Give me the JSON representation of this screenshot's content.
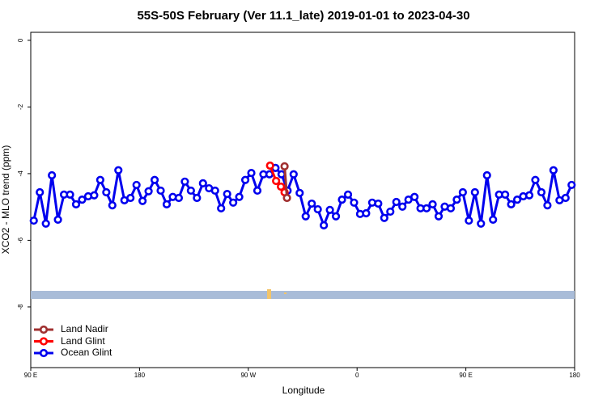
{
  "chart_data": {
    "type": "line",
    "title": "55S-50S February (Ver 11.1_late)   2019-01-01 to 2023-04-30",
    "xlabel": "Longitude",
    "ylabel": "XCO2 - MLO trend (ppm)",
    "xlim": [
      90,
      540
    ],
    "ylim": [
      -9.82,
      0.24
    ],
    "xticks": [
      {
        "value": 90,
        "label": "90 E"
      },
      {
        "value": 180,
        "label": "180"
      },
      {
        "value": 270,
        "label": "90 W"
      },
      {
        "value": 360,
        "label": "0"
      },
      {
        "value": 450,
        "label": "90 E"
      },
      {
        "value": 540,
        "label": "180"
      }
    ],
    "yticks": [
      0,
      -2,
      -4,
      -6,
      -8
    ],
    "legend": "bottom-left",
    "series": [
      {
        "name": "Land Nadir",
        "color": "#a03030",
        "x": [
          300,
          302
        ],
        "values": [
          -3.78,
          -4.73
        ]
      },
      {
        "name": "Land Glint",
        "color": "#ff0000",
        "x": [
          288,
          293,
          297,
          300
        ],
        "values": [
          -3.76,
          -4.22,
          -4.39,
          -4.56
        ]
      },
      {
        "name": "Ocean Glint",
        "color": "#0000ee",
        "x": [
          92.5,
          97.5,
          102.5,
          107.5,
          112.5,
          117.5,
          122.5,
          127.5,
          132.5,
          137.5,
          142.5,
          147.5,
          152.5,
          157.5,
          162.5,
          167.5,
          172.5,
          177.5,
          182.5,
          187.5,
          192.5,
          197.5,
          202.5,
          207.5,
          212.5,
          217.5,
          222.5,
          227.5,
          232.5,
          237.5,
          242.5,
          247.5,
          252.5,
          257.5,
          262.5,
          267.5,
          272.5,
          277.5,
          282.5,
          287.5,
          292.5,
          297.5,
          302.5,
          307.5,
          312.5,
          317.5,
          322.5,
          327.5,
          332.5,
          337.5,
          342.5,
          347.5,
          352.5,
          357.5,
          362.5,
          367.5,
          372.5,
          377.5,
          382.5,
          387.5,
          392.5,
          397.5,
          402.5,
          407.5,
          412.5,
          417.5,
          422.5,
          427.5,
          432.5,
          437.5,
          442.5,
          447.5,
          452.5,
          457.5,
          462.5,
          467.5,
          472.5,
          477.5,
          482.5,
          487.5,
          492.5,
          497.5,
          502.5,
          507.5,
          512.5,
          517.5,
          522.5,
          527.5,
          532.5,
          537.5
        ],
        "values": [
          -5.41,
          -4.56,
          -5.5,
          -4.05,
          -5.38,
          -4.63,
          -4.63,
          -4.92,
          -4.78,
          -4.68,
          -4.65,
          -4.19,
          -4.56,
          -4.95,
          -3.9,
          -4.8,
          -4.73,
          -4.34,
          -4.82,
          -4.53,
          -4.19,
          -4.51,
          -4.92,
          -4.7,
          -4.73,
          -4.24,
          -4.51,
          -4.73,
          -4.29,
          -4.44,
          -4.51,
          -5.04,
          -4.61,
          -4.87,
          -4.7,
          -4.19,
          -3.98,
          -4.51,
          -4.02,
          -4.02,
          -3.83,
          -4.02,
          -4.51,
          -4.02,
          -4.58,
          -5.28,
          -4.9,
          -5.07,
          -5.55,
          -5.09,
          -5.28,
          -4.78,
          -4.63,
          -4.87,
          -5.21,
          -5.19,
          -4.87,
          -4.9,
          -5.33,
          -5.14,
          -4.85,
          -4.99,
          -4.78,
          -4.7,
          -5.04,
          -5.04,
          -4.92,
          -5.28,
          -4.99,
          -5.04,
          -4.78,
          -4.56,
          -5.41,
          -4.56,
          -5.5,
          -4.05,
          -5.38,
          -4.63,
          -4.63,
          -4.92,
          -4.78,
          -4.68,
          -4.65,
          -4.19,
          -4.56,
          -4.95,
          -3.9,
          -4.8,
          -4.73,
          -4.34
        ]
      }
    ]
  }
}
